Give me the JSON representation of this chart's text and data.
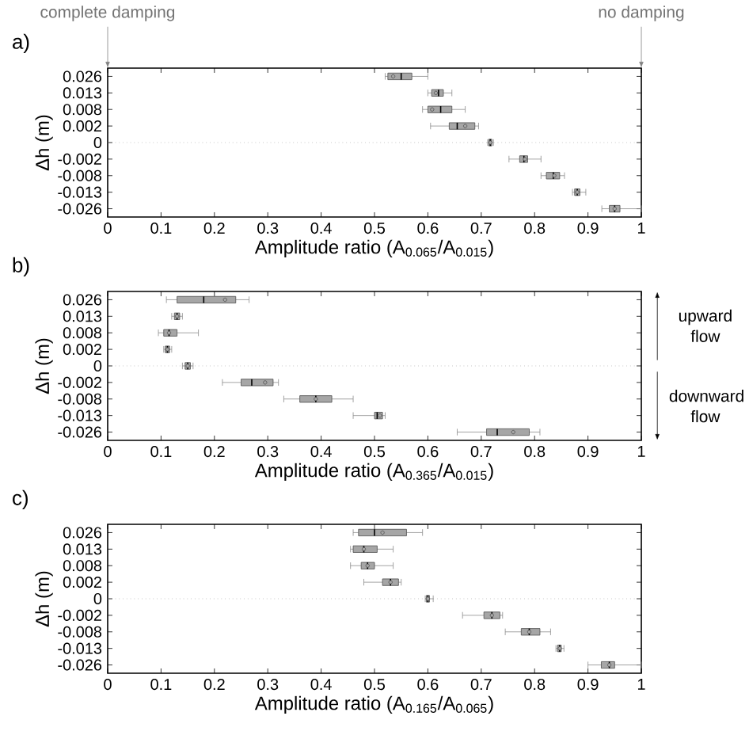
{
  "chart_data": [
    {
      "type": "box",
      "orientation": "horizontal",
      "title": "a)",
      "xlabel": "Amplitude ratio (A$_{0.065}$/A$_{0.015}$)",
      "ylabel": "Δh (m)",
      "color": "#a6a6a6",
      "categories": [
        "0.026",
        "0.013",
        "0.008",
        "0.002",
        "0",
        "-0.002",
        "-0.008",
        "-0.013",
        "-0.026"
      ],
      "boxes": [
        {
          "low": 0.52,
          "q1": 0.525,
          "median": 0.55,
          "q3": 0.57,
          "high": 0.6,
          "mean": 0.535
        },
        {
          "low": 0.6,
          "q1": 0.607,
          "median": 0.62,
          "q3": 0.629,
          "high": 0.645,
          "mean": 0.615
        },
        {
          "low": 0.59,
          "q1": 0.6,
          "median": 0.624,
          "q3": 0.645,
          "high": 0.67,
          "mean": 0.608
        },
        {
          "low": 0.605,
          "q1": 0.64,
          "median": 0.655,
          "q3": 0.688,
          "high": 0.695,
          "mean": 0.67
        },
        {
          "low": 0.712,
          "q1": 0.714,
          "median": 0.717,
          "q3": 0.72,
          "high": 0.723,
          "mean": 0.717
        },
        {
          "low": 0.752,
          "q1": 0.772,
          "median": 0.78,
          "q3": 0.787,
          "high": 0.812,
          "mean": 0.782
        },
        {
          "low": 0.812,
          "q1": 0.822,
          "median": 0.835,
          "q3": 0.847,
          "high": 0.856,
          "mean": 0.837
        },
        {
          "low": 0.871,
          "q1": 0.875,
          "median": 0.88,
          "q3": 0.885,
          "high": 0.896,
          "mean": 0.88
        },
        {
          "low": 0.926,
          "q1": 0.94,
          "median": 0.95,
          "q3": 0.96,
          "high": 1.0,
          "mean": 0.95
        }
      ],
      "xlim": [
        0,
        1
      ],
      "xticks": [
        0,
        0.1,
        0.2,
        0.3,
        0.4,
        0.5,
        0.6,
        0.7,
        0.8,
        0.9,
        1
      ],
      "ref_lines": [
        {
          "axis": "y",
          "value": "0",
          "color": "#aaaaaa",
          "line_style": "dotted"
        }
      ],
      "annotations": [
        "complete damping",
        "no damping"
      ]
    },
    {
      "type": "box",
      "orientation": "horizontal",
      "title": "b)",
      "xlabel": "Amplitude ratio (A$_{0.365}$/A$_{0.015}$)",
      "ylabel": "Δh (m)",
      "color": "#a6a6a6",
      "categories": [
        "0.026",
        "0.013",
        "0.008",
        "0.002",
        "0",
        "-0.002",
        "-0.008",
        "-0.013",
        "-0.026"
      ],
      "boxes": [
        {
          "low": 0.11,
          "q1": 0.13,
          "median": 0.18,
          "q3": 0.24,
          "high": 0.265,
          "mean": 0.22
        },
        {
          "low": 0.12,
          "q1": 0.125,
          "median": 0.13,
          "q3": 0.135,
          "high": 0.14,
          "mean": 0.13
        },
        {
          "low": 0.095,
          "q1": 0.105,
          "median": 0.115,
          "q3": 0.13,
          "high": 0.17,
          "mean": 0.115
        },
        {
          "low": 0.105,
          "q1": 0.108,
          "median": 0.112,
          "q3": 0.116,
          "high": 0.12,
          "mean": 0.112
        },
        {
          "low": 0.14,
          "q1": 0.145,
          "median": 0.15,
          "q3": 0.155,
          "high": 0.16,
          "mean": 0.15
        },
        {
          "low": 0.215,
          "q1": 0.25,
          "median": 0.27,
          "q3": 0.31,
          "high": 0.32,
          "mean": 0.295
        },
        {
          "low": 0.33,
          "q1": 0.36,
          "median": 0.39,
          "q3": 0.42,
          "high": 0.46,
          "mean": 0.39
        },
        {
          "low": 0.46,
          "q1": 0.5,
          "median": 0.505,
          "q3": 0.515,
          "high": 0.52,
          "mean": 0.51
        },
        {
          "low": 0.655,
          "q1": 0.71,
          "median": 0.73,
          "q3": 0.79,
          "high": 0.81,
          "mean": 0.76
        }
      ],
      "xlim": [
        0,
        1
      ],
      "xticks": [
        0,
        0.1,
        0.2,
        0.3,
        0.4,
        0.5,
        0.6,
        0.7,
        0.8,
        0.9,
        1
      ],
      "ref_lines": [
        {
          "axis": "y",
          "value": "0",
          "color": "#aaaaaa",
          "line_style": "dotted"
        }
      ],
      "annotations": [
        "upward flow",
        "downward flow"
      ]
    },
    {
      "type": "box",
      "orientation": "horizontal",
      "title": "c)",
      "xlabel": "Amplitude ratio (A$_{0.165}$/A$_{0.065}$)",
      "ylabel": "Δh (m)",
      "color": "#a6a6a6",
      "categories": [
        "0.026",
        "0.013",
        "0.008",
        "0.002",
        "0",
        "-0.002",
        "-0.008",
        "-0.013",
        "-0.026"
      ],
      "boxes": [
        {
          "low": 0.46,
          "q1": 0.47,
          "median": 0.5,
          "q3": 0.56,
          "high": 0.59,
          "mean": 0.515
        },
        {
          "low": 0.455,
          "q1": 0.46,
          "median": 0.48,
          "q3": 0.505,
          "high": 0.535,
          "mean": 0.48
        },
        {
          "low": 0.455,
          "q1": 0.475,
          "median": 0.487,
          "q3": 0.5,
          "high": 0.535,
          "mean": 0.487
        },
        {
          "low": 0.48,
          "q1": 0.515,
          "median": 0.53,
          "q3": 0.545,
          "high": 0.55,
          "mean": 0.53
        },
        {
          "low": 0.595,
          "q1": 0.597,
          "median": 0.6,
          "q3": 0.603,
          "high": 0.61,
          "mean": 0.6
        },
        {
          "low": 0.665,
          "q1": 0.705,
          "median": 0.72,
          "q3": 0.735,
          "high": 0.74,
          "mean": 0.72
        },
        {
          "low": 0.745,
          "q1": 0.775,
          "median": 0.79,
          "q3": 0.81,
          "high": 0.83,
          "mean": 0.79
        },
        {
          "low": 0.84,
          "q1": 0.843,
          "median": 0.847,
          "q3": 0.85,
          "high": 0.855,
          "mean": 0.847
        },
        {
          "low": 0.9,
          "q1": 0.925,
          "median": 0.94,
          "q3": 0.95,
          "high": 1.0,
          "mean": 0.94
        }
      ],
      "xlim": [
        0,
        1
      ],
      "xticks": [
        0,
        0.1,
        0.2,
        0.3,
        0.4,
        0.5,
        0.6,
        0.7,
        0.8,
        0.9,
        1
      ],
      "ref_lines": [
        {
          "axis": "y",
          "value": "0",
          "color": "#aaaaaa",
          "line_style": "dotted"
        }
      ]
    }
  ]
}
